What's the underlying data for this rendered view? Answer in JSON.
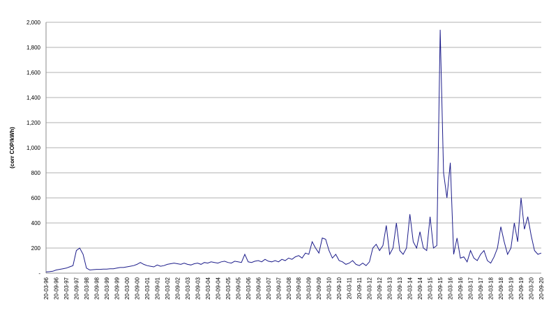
{
  "chart_data": {
    "type": "line",
    "y_label": "(corr COP/kWh)",
    "categories": [
      "20-03-96",
      null,
      null,
      "20-09-96",
      null,
      null,
      "20-03-97",
      null,
      null,
      "20-09-97",
      null,
      null,
      "20-03-98",
      null,
      null,
      "20-09-98",
      null,
      null,
      "20-03-99",
      null,
      null,
      "20-09-99",
      null,
      null,
      "20-03-00",
      null,
      null,
      "20-09-00",
      null,
      null,
      "20-03-01",
      null,
      null,
      "20-09-01",
      null,
      null,
      "20-03-02",
      null,
      null,
      "20-09-02",
      null,
      null,
      "20-03-03",
      null,
      null,
      "20-09-03",
      null,
      null,
      "20-03-04",
      null,
      null,
      "20-09-04",
      null,
      null,
      "20-03-05",
      null,
      null,
      "20-09-05",
      null,
      null,
      "20-03-06",
      null,
      null,
      "20-09-06",
      null,
      null,
      "20-03-07",
      null,
      null,
      "20-09-07",
      null,
      null,
      "20-03-08",
      null,
      null,
      "20-09-08",
      null,
      null,
      "20-03-09",
      null,
      null,
      "20-09-09",
      null,
      null,
      "20-03-10",
      null,
      null,
      "20-09-10",
      null,
      null,
      "20-03-11",
      null,
      null,
      "20-09-11",
      null,
      null,
      "20-03-12",
      null,
      null,
      "20-09-12",
      null,
      null,
      "20-03-13",
      null,
      null,
      "20-09-13",
      null,
      null,
      "20-03-14",
      null,
      null,
      "20-09-14",
      null,
      null,
      "20-03-15",
      null,
      null,
      "20-09-15",
      null,
      null,
      "20-03-16",
      null,
      null,
      "20-09-16",
      null,
      null,
      "20-03-17",
      null,
      null,
      "20-09-17",
      null,
      null,
      "20-03-18",
      null,
      null,
      "20-09-18",
      null,
      null,
      "20-03-19",
      null,
      null,
      "20-09-19",
      null,
      null,
      "20-03-20",
      null,
      null,
      "20-09-20"
    ],
    "values": [
      10,
      12,
      15,
      25,
      30,
      35,
      40,
      50,
      60,
      180,
      200,
      150,
      40,
      25,
      28,
      30,
      30,
      32,
      32,
      35,
      35,
      40,
      45,
      45,
      50,
      55,
      60,
      70,
      85,
      70,
      60,
      55,
      50,
      65,
      55,
      60,
      70,
      75,
      80,
      75,
      70,
      80,
      70,
      65,
      75,
      80,
      70,
      85,
      80,
      90,
      85,
      80,
      90,
      95,
      85,
      80,
      95,
      90,
      85,
      150,
      90,
      85,
      95,
      100,
      90,
      110,
      95,
      90,
      100,
      90,
      110,
      100,
      120,
      110,
      130,
      140,
      120,
      160,
      150,
      250,
      200,
      160,
      280,
      270,
      180,
      120,
      150,
      100,
      90,
      70,
      80,
      100,
      70,
      60,
      80,
      60,
      90,
      200,
      230,
      180,
      220,
      380,
      150,
      200,
      400,
      180,
      150,
      200,
      470,
      250,
      200,
      330,
      200,
      180,
      450,
      200,
      220,
      1940,
      800,
      600,
      880,
      150,
      280,
      120,
      130,
      90,
      180,
      120,
      100,
      150,
      180,
      100,
      80,
      130,
      200,
      370,
      250,
      150,
      200,
      400,
      250,
      600,
      350,
      450,
      300,
      180,
      150,
      160
    ],
    "color": "#1c1c8a",
    "ylim": [
      0,
      2000
    ],
    "yticks": [
      {
        "value": 0,
        "label": "-"
      },
      200,
      400,
      600,
      800,
      {
        "value": 1000,
        "label": "1,000"
      },
      {
        "value": 1200,
        "label": "1,200"
      },
      {
        "value": 1400,
        "label": "1,400"
      },
      {
        "value": 1600,
        "label": "1,600"
      },
      {
        "value": 1800,
        "label": "1,800"
      },
      {
        "value": 2000,
        "label": "2,000"
      }
    ],
    "grid": true
  }
}
